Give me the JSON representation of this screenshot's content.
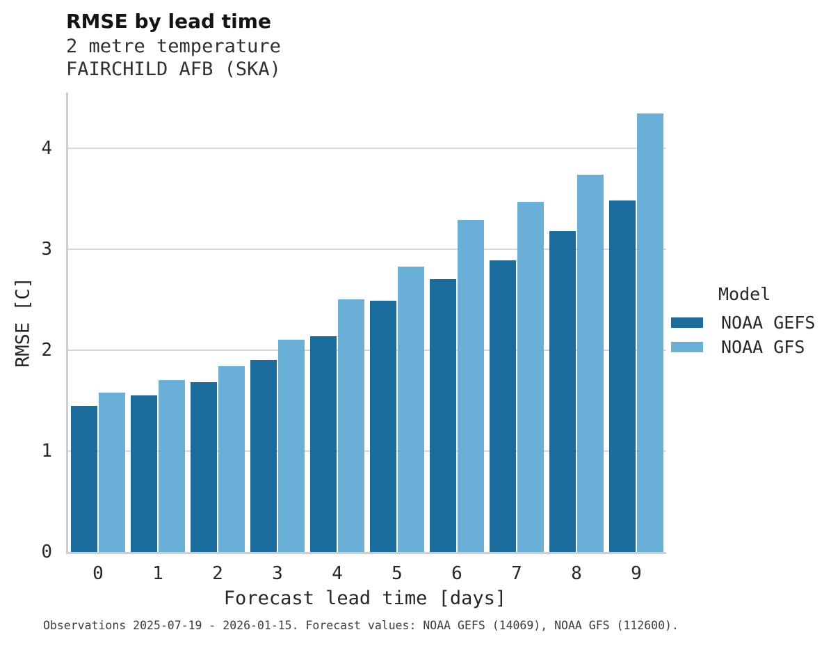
{
  "header": {
    "title": "RMSE by lead time",
    "subtitle_line1": "2 metre temperature",
    "subtitle_line2": "FAIRCHILD AFB (SKA)"
  },
  "legend": {
    "title": "Model",
    "entries": [
      {
        "label": "NOAA GEFS",
        "color": "#1a6c9d"
      },
      {
        "label": "NOAA GFS",
        "color": "#6aafd8"
      }
    ]
  },
  "footer": {
    "text": "Observations 2025-07-19 - 2026-01-15. Forecast values: NOAA GEFS (14069), NOAA GFS (112600)."
  },
  "chart_data": {
    "type": "bar",
    "title": "RMSE by lead time",
    "subtitle_lines": [
      "2 metre temperature",
      "FAIRCHILD AFB (SKA)"
    ],
    "categories": [
      "0",
      "1",
      "2",
      "3",
      "4",
      "5",
      "6",
      "7",
      "8",
      "9"
    ],
    "series": [
      {
        "name": "NOAA GEFS",
        "color": "#1a6c9d",
        "values": [
          1.45,
          1.55,
          1.68,
          1.9,
          2.14,
          2.49,
          2.7,
          2.89,
          3.18,
          3.48
        ]
      },
      {
        "name": "NOAA GFS",
        "color": "#6aafd8",
        "values": [
          1.58,
          1.7,
          1.84,
          2.1,
          2.5,
          2.83,
          3.29,
          3.47,
          3.74,
          4.34
        ]
      }
    ],
    "xlabel": "Forecast lead time [days]",
    "ylabel": "RMSE [C]",
    "ylim": [
      0,
      4.55
    ],
    "yticks": [
      0,
      1,
      2,
      3,
      4
    ],
    "grid": true,
    "legend_position": "right"
  },
  "colors": {
    "gridline": "#d9d9d9",
    "spine": "#cdcdcd",
    "background": "#ffffff",
    "text": "#262626"
  }
}
